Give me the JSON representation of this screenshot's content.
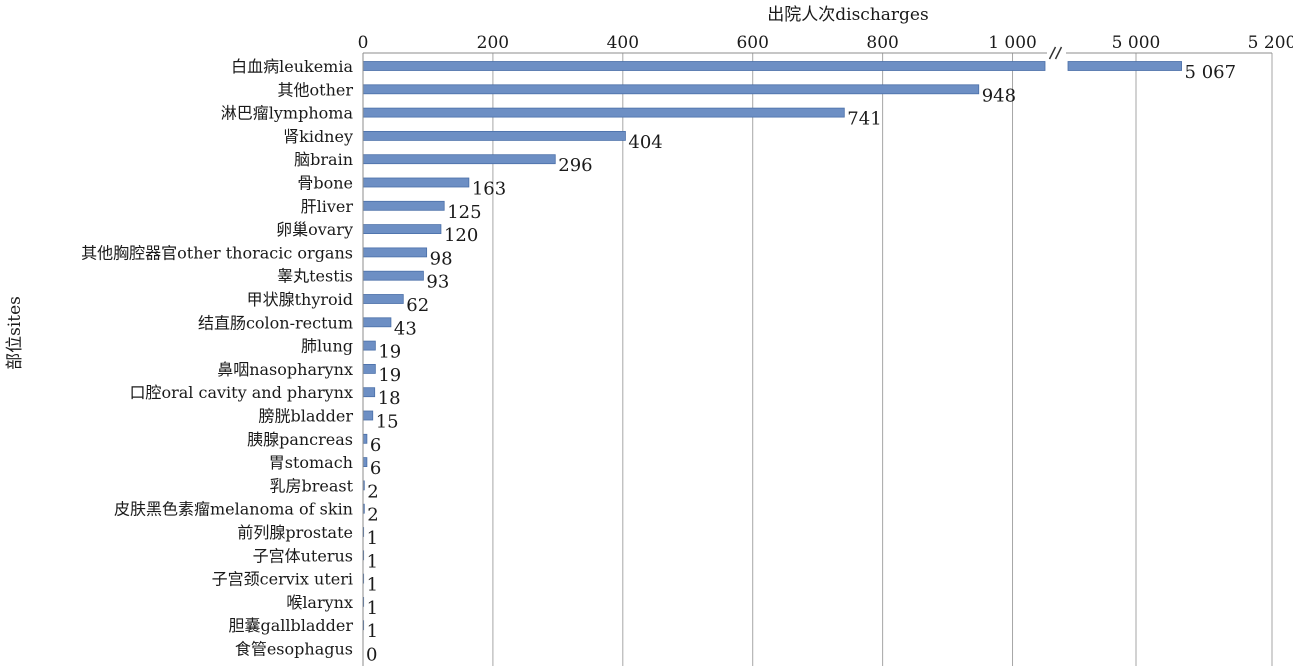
{
  "chart_data": {
    "type": "bar",
    "orientation": "horizontal",
    "xlabel": "出院人次discharges",
    "ylabel": "部位sites",
    "x_axis_position": "top",
    "x_axis_break": {
      "from": 1050,
      "to": 4900
    },
    "xlim": [
      0,
      5200
    ],
    "x_ticks": [
      {
        "value": 0,
        "label": "0"
      },
      {
        "value": 200,
        "label": "200"
      },
      {
        "value": 400,
        "label": "400"
      },
      {
        "value": 600,
        "label": "600"
      },
      {
        "value": 800,
        "label": "800"
      },
      {
        "value": 1000,
        "label": "1 000"
      },
      {
        "value": 5000,
        "label": "5 000"
      },
      {
        "value": 5200,
        "label": "5 200"
      }
    ],
    "grid": "vertical",
    "bar_color": "#6d8fc4",
    "bar_edge_color": "#4a6fa8",
    "categories": [
      "白血病leukemia",
      "其他other",
      "淋巴瘤lymphoma",
      "肾kidney",
      "脑brain",
      "骨bone",
      "肝liver",
      "卵巢ovary",
      "其他胸腔器官other thoracic organs",
      "睾丸testis",
      "甲状腺thyroid",
      "结直肠colon-rectum",
      "肺lung",
      "鼻咽nasopharynx",
      "口腔oral cavity and pharynx",
      "膀胱bladder",
      "胰腺pancreas",
      "胃stomach",
      "乳房breast",
      "皮肤黑色素瘤melanoma of skin",
      "前列腺prostate",
      "子宫体uterus",
      "子宫颈cervix uteri",
      "喉larynx",
      "胆囊gallbladder",
      "食管esophagus"
    ],
    "values": [
      5067,
      948,
      741,
      404,
      296,
      163,
      125,
      120,
      98,
      93,
      62,
      43,
      19,
      19,
      18,
      15,
      6,
      6,
      2,
      2,
      1,
      1,
      1,
      1,
      1,
      0
    ],
    "value_labels": [
      "5 067",
      "948",
      "741",
      "404",
      "296",
      "163",
      "125",
      "120",
      "98",
      "93",
      "62",
      "43",
      "19",
      "19",
      "18",
      "15",
      "6",
      "6",
      "2",
      "2",
      "1",
      "1",
      "1",
      "1",
      "1",
      "0"
    ]
  }
}
